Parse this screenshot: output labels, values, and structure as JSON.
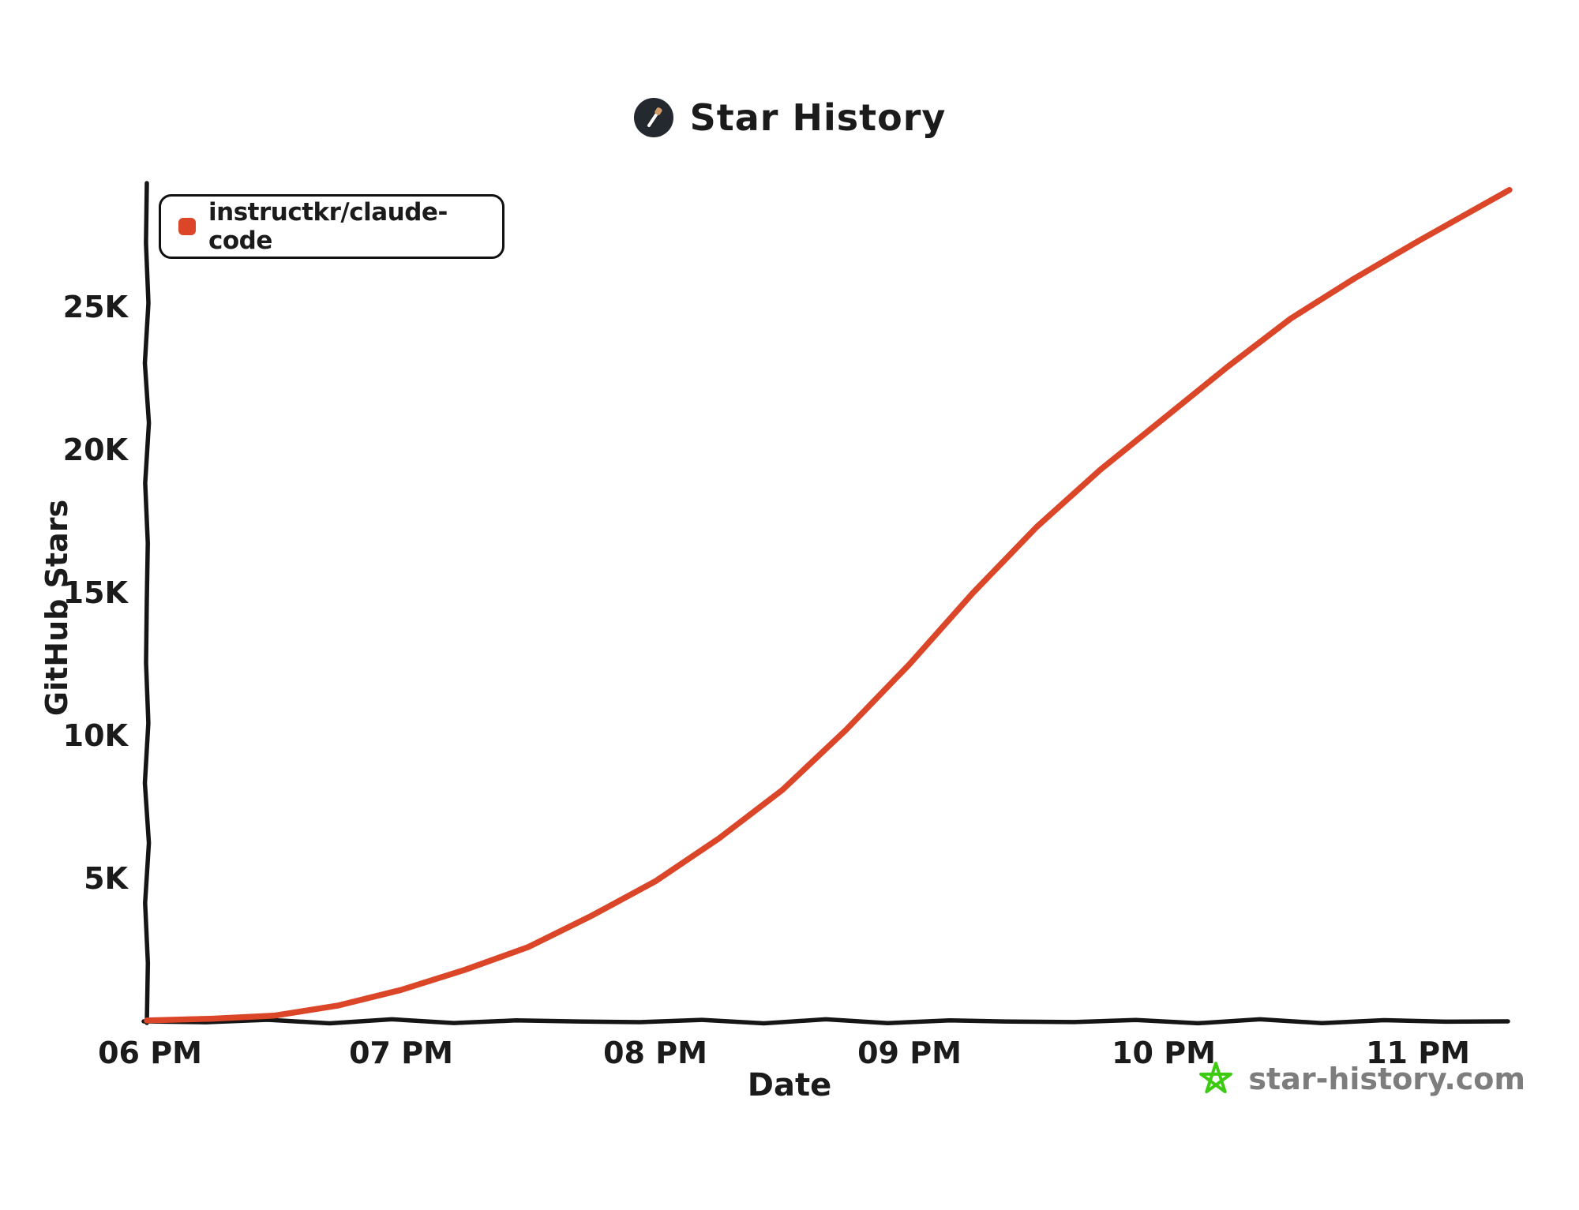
{
  "header": {
    "title": "Star History"
  },
  "legend": {
    "series_label": "instructkr/claude-code",
    "marker_color": "#DB4528"
  },
  "watermark": {
    "label": "star-history.com",
    "text_color": "#7d7d7d",
    "star_color": "#3DCB12"
  },
  "colors": {
    "axis": "#151515",
    "series": "#DB4528",
    "logo_circle": "#24292F",
    "logo_pencil": "#ffffff",
    "logo_pencil_tip": "#D29B68"
  },
  "chart_data": {
    "type": "line",
    "title": "Star History",
    "xlabel": "Date",
    "ylabel": "GitHub Stars",
    "x_tick_labels": [
      "06 PM",
      "07 PM",
      "08 PM",
      "09 PM",
      "10 PM",
      "11 PM"
    ],
    "x_tick_hours": [
      18,
      19,
      20,
      21,
      22,
      23
    ],
    "y_tick_labels": [
      "5K",
      "10K",
      "15K",
      "20K",
      "25K"
    ],
    "y_tick_values": [
      5000,
      10000,
      15000,
      20000,
      25000
    ],
    "xlim_hours": [
      18,
      23.4
    ],
    "ylim": [
      0,
      29500
    ],
    "grid": false,
    "legend_position": "top-left",
    "series": [
      {
        "name": "instructkr/claude-code",
        "color": "#DB4528",
        "x_hours": [
          18.0,
          18.25,
          18.5,
          18.75,
          19.0,
          19.25,
          19.5,
          19.75,
          20.0,
          20.25,
          20.5,
          20.75,
          21.0,
          21.25,
          21.5,
          21.75,
          22.0,
          22.25,
          22.5,
          22.75,
          23.0,
          23.2,
          23.36
        ],
        "stars": [
          30,
          90,
          200,
          550,
          1100,
          1800,
          2600,
          3700,
          4900,
          6400,
          8100,
          10200,
          12500,
          15000,
          17300,
          19300,
          21100,
          22900,
          24600,
          26000,
          27300,
          28300,
          29100
        ]
      }
    ]
  }
}
